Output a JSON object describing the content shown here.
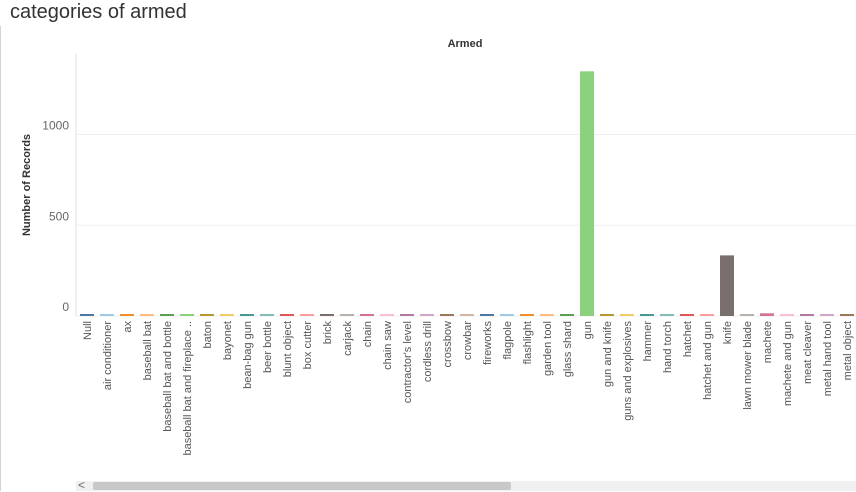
{
  "page": {
    "title": "categories of armed"
  },
  "chart_data": {
    "type": "bar",
    "title": "Armed",
    "xlabel": "",
    "ylabel": "Number of Records",
    "ylim": [
      0,
      1400
    ],
    "yticks": [
      0,
      500,
      1000
    ],
    "grid": true,
    "categories": [
      "Null",
      "air conditioner",
      "ax",
      "baseball bat",
      "baseball bat and bottle",
      "baseball bat and fireplace ..",
      "baton",
      "bayonet",
      "bean-bag gun",
      "beer bottle",
      "blunt object",
      "box cutter",
      "brick",
      "carjack",
      "chain",
      "chain saw",
      "contractor's level",
      "cordless drill",
      "crossbow",
      "crowbar",
      "fireworks",
      "flagpole",
      "flashlight",
      "garden tool",
      "glass shard",
      "gun",
      "gun and knife",
      "guns and explosives",
      "hammer",
      "hand torch",
      "hatchet",
      "hatchet and gun",
      "knife",
      "lawn mower blade",
      "machete",
      "machete and gun",
      "meat cleaver",
      "metal hand tool",
      "metal object"
    ],
    "values": [
      9,
      1,
      9,
      5,
      1,
      1,
      1,
      1,
      1,
      1,
      5,
      3,
      1,
      1,
      1,
      1,
      1,
      1,
      3,
      1,
      1,
      1,
      1,
      1,
      1,
      1348,
      5,
      3,
      6,
      1,
      5,
      1,
      334,
      1,
      15,
      1,
      1,
      1,
      1
    ],
    "colors": [
      "#4e79a7",
      "#a0cbe8",
      "#f28e2b",
      "#ffbe7d",
      "#59a14f",
      "#8cd17d",
      "#b6992d",
      "#f1ce63",
      "#499894",
      "#86bcb6",
      "#e15759",
      "#ff9d9a",
      "#79706e",
      "#bab0ac",
      "#d37295",
      "#fabfd2",
      "#b07aa1",
      "#d4a6c8",
      "#9d7660",
      "#d7b5a6",
      "#4e79a7",
      "#a0cbe8",
      "#f28e2b",
      "#ffbe7d",
      "#59a14f",
      "#8cd17d",
      "#b6992d",
      "#f1ce63",
      "#499894",
      "#86bcb6",
      "#e15759",
      "#ff9d9a",
      "#79706e",
      "#bab0ac",
      "#d37295",
      "#fabfd2",
      "#b07aa1",
      "#d4a6c8",
      "#9d7660"
    ]
  },
  "scrollbar": {
    "left_arrow": "<"
  }
}
